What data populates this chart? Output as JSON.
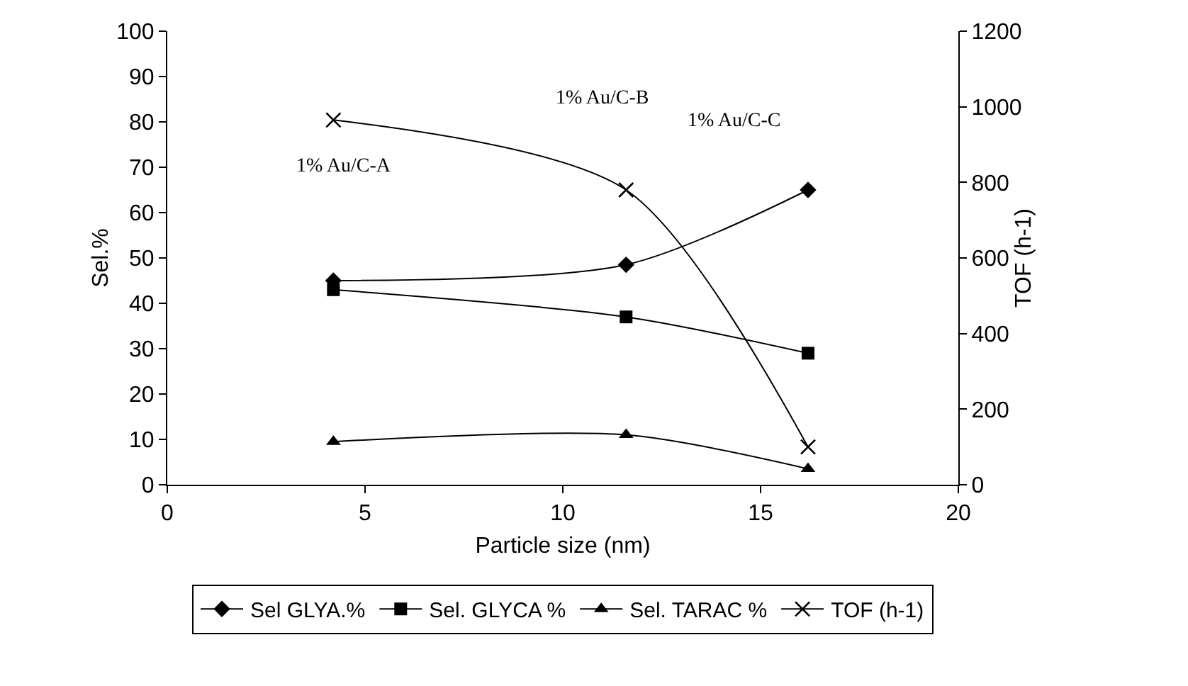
{
  "chart_data": {
    "type": "line",
    "xlabel": "Particle size (nm)",
    "ylabel": "Sel.%",
    "y2label": "TOF (h-1)",
    "xlim": [
      0,
      20
    ],
    "xticks": [
      0,
      5,
      10,
      15,
      20
    ],
    "ylim": [
      0,
      100
    ],
    "yticks": [
      0,
      10,
      20,
      30,
      40,
      50,
      60,
      70,
      80,
      90,
      100
    ],
    "y2lim": [
      0,
      1200
    ],
    "y2ticks": [
      0,
      200,
      400,
      600,
      800,
      1000,
      1200
    ],
    "x": [
      4.2,
      11.6,
      16.2
    ],
    "series": [
      {
        "name": "Sel GLYA.%",
        "color": "#000000",
        "marker": "diamond",
        "values": [
          45,
          48.5,
          65
        ]
      },
      {
        "name": "Sel. GLYCA %",
        "color": "#000000",
        "marker": "square",
        "values": [
          43,
          37,
          29
        ]
      },
      {
        "name": "Sel. TARAC %",
        "color": "#000000",
        "marker": "triangle",
        "values": [
          9.5,
          11,
          3.5
        ]
      },
      {
        "name": "TOF (h-1)",
        "color": "#000000",
        "marker": "cross",
        "axis": "y2",
        "values": [
          965,
          780,
          100
        ]
      }
    ],
    "annotations": [
      "1% Au/C-A",
      "1% Au/C-B",
      "1% Au/C-C"
    ],
    "grid": false,
    "legend": "bottom",
    "line_style": "solid"
  }
}
